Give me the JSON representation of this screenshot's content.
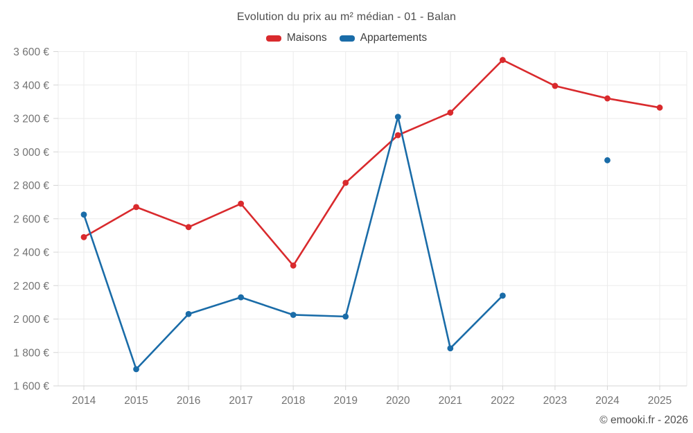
{
  "title": "Evolution du prix au m² médian - 01 - Balan",
  "footer": "© emooki.fr - 2026",
  "colors": {
    "maisons": "#d92a2d",
    "appartements": "#1a6ca8",
    "grid": "#ebebeb",
    "axis": "#d4d4d4",
    "tick_label": "#737373",
    "title_text": "#4d4d4d"
  },
  "chart_data": {
    "type": "line",
    "x": [
      "2014",
      "2015",
      "2016",
      "2017",
      "2018",
      "2019",
      "2020",
      "2021",
      "2022",
      "2023",
      "2024",
      "2025"
    ],
    "series": [
      {
        "name": "Maisons",
        "color": "#d92a2d",
        "values": [
          2490,
          2670,
          2550,
          2690,
          2320,
          2815,
          3100,
          3235,
          3550,
          3395,
          3320,
          3265
        ]
      },
      {
        "name": "Appartements",
        "color": "#1a6ca8",
        "values": [
          2625,
          1700,
          2030,
          2130,
          2025,
          2015,
          3210,
          1825,
          2140,
          null,
          2950,
          null
        ]
      }
    ],
    "title": "Evolution du prix au m² médian - 01 - Balan",
    "xlabel": "",
    "ylabel": "",
    "ylim": [
      1600,
      3600
    ],
    "ytick_step": 200,
    "ytick_suffix": " €",
    "grid": true,
    "legend_position": "top"
  }
}
